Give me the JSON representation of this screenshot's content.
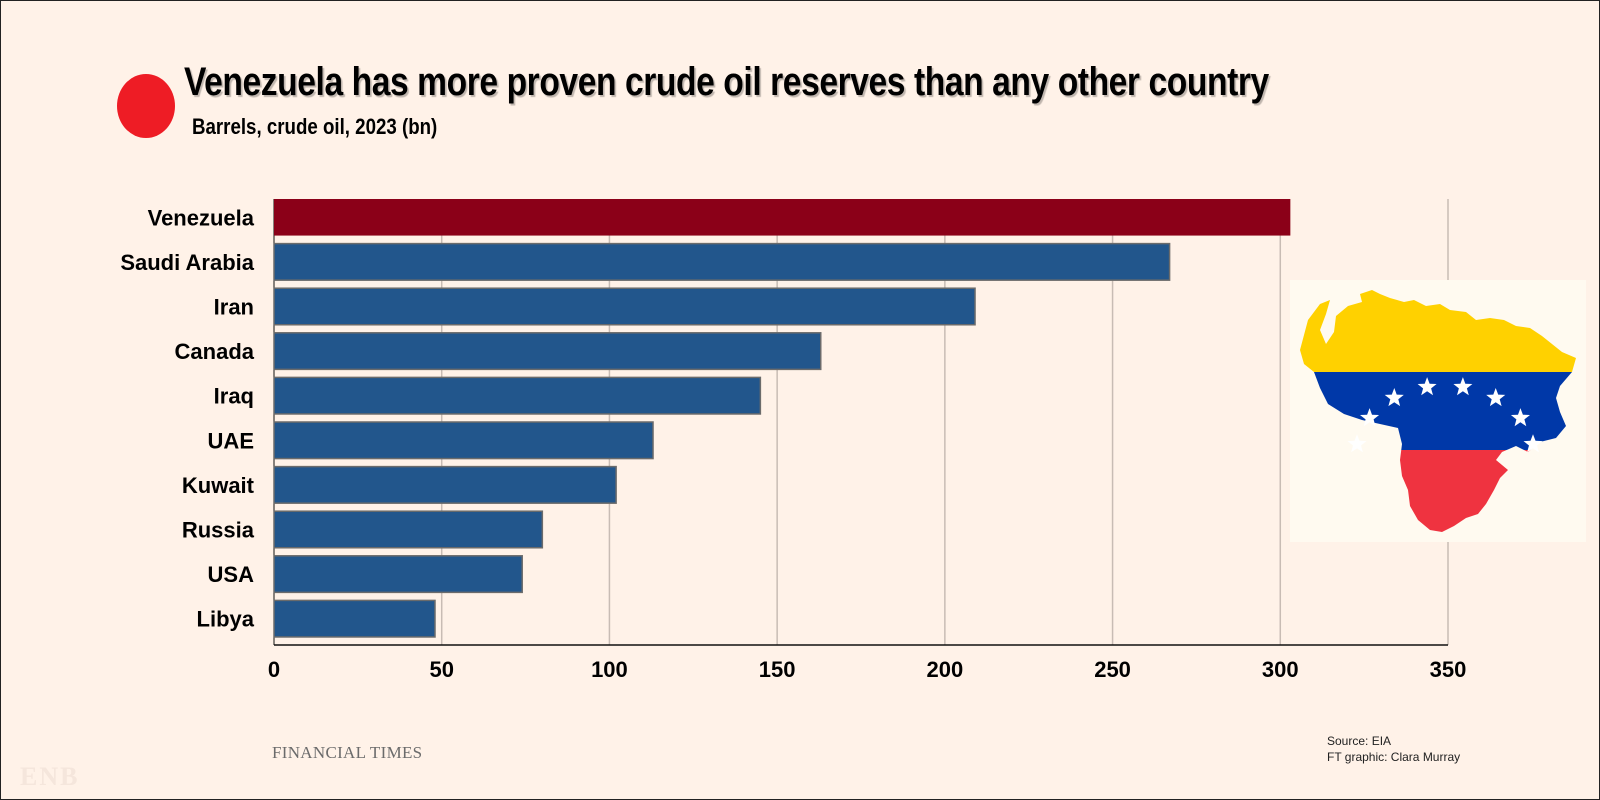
{
  "header": {
    "title": "Venezuela has more proven crude oil reserves than any other country",
    "subtitle": "Barrels, crude oil, 2023 (bn)"
  },
  "colors": {
    "title_dot": "#ee1c25",
    "highlight_bar": "#8b0018",
    "default_bar": "#22568c",
    "background": "#fff2e8",
    "gridline": "#c8bcb4"
  },
  "chart_data": {
    "type": "bar",
    "orientation": "horizontal",
    "title": "Venezuela has more proven crude oil reserves than any other country",
    "subtitle": "Barrels, crude oil, 2023 (bn)",
    "categories": [
      "Venezuela",
      "Saudi Arabia",
      "Iran",
      "Canada",
      "Iraq",
      "UAE",
      "Kuwait",
      "Russia",
      "USA",
      "Libya"
    ],
    "values": [
      303,
      267,
      209,
      163,
      145,
      113,
      102,
      80,
      74,
      48
    ],
    "highlight": "Venezuela",
    "xlim": [
      0,
      350
    ],
    "xticks": [
      0,
      50,
      100,
      150,
      200,
      250,
      300,
      350
    ],
    "grid": "vertical",
    "xlabel": "",
    "ylabel": ""
  },
  "illustration": {
    "name": "venezuela-flag-map",
    "colors": [
      "#ffd100",
      "#0038a8",
      "#ef3340"
    ],
    "stars": 8
  },
  "footer": {
    "brand": "FINANCIAL TIMES",
    "source": "Source: EIA",
    "credit": "FT graphic: Clara Murray",
    "watermark": "ENB"
  }
}
